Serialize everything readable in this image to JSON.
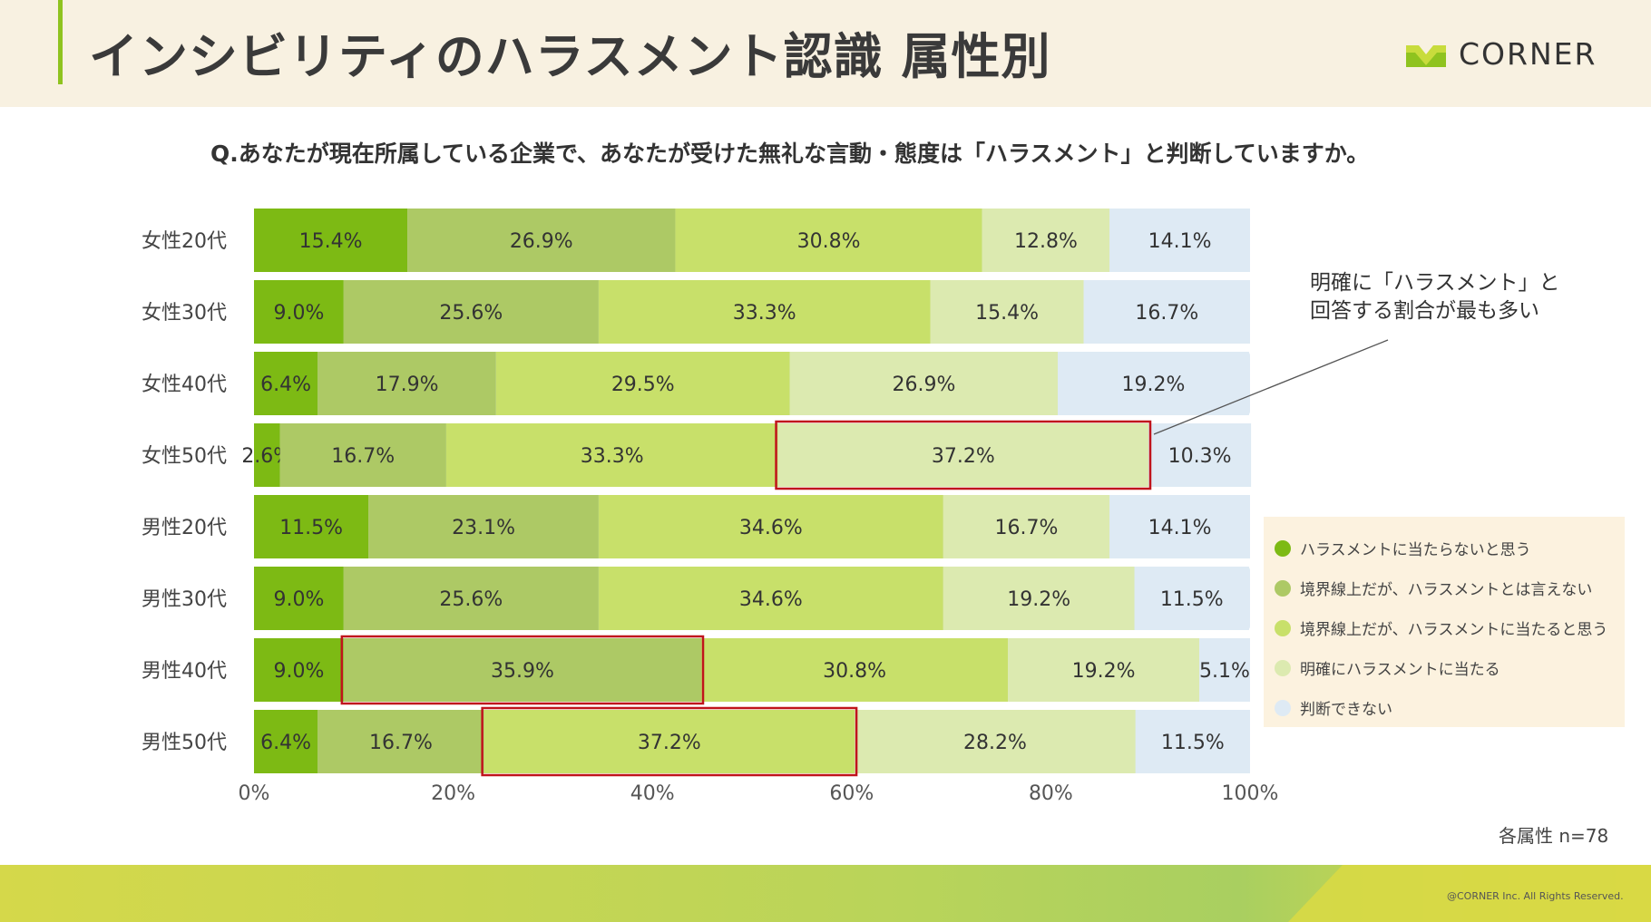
{
  "header": {
    "title": "インシビリティのハラスメント認識 属性別"
  },
  "logo": {
    "text": "CORNER"
  },
  "question": "Q.あなたが現在所属している企業で、あなたが受けた無礼な言動・態度は「ハラスメント」と判断していますか。",
  "annotation": {
    "line1": "明確に「ハラスメント」と",
    "line2": "回答する割合が最も多い"
  },
  "sample_note": "各属性 n=78",
  "copyright": "@CORNER Inc. All Rights Reserved.",
  "colors": {
    "s1": "#7dba14",
    "s2": "#adc965",
    "s3": "#c8e06a",
    "s4": "#dceab0",
    "s5": "#deeaf4",
    "highlight": "#c0141c",
    "header_bg": "#f8f1e1",
    "accent": "#8fc31f"
  },
  "chart_data": {
    "type": "bar",
    "orientation": "horizontal",
    "stacked": true,
    "categories": [
      "女性20代",
      "女性30代",
      "女性40代",
      "女性50代",
      "男性20代",
      "男性30代",
      "男性40代",
      "男性50代"
    ],
    "series": [
      {
        "name": "ハラスメントに当たらないと思う",
        "values": [
          15.4,
          9.0,
          6.4,
          2.6,
          11.5,
          9.0,
          9.0,
          6.4
        ]
      },
      {
        "name": "境界線上だが、ハラスメントとは言えない",
        "values": [
          26.9,
          25.6,
          17.9,
          16.7,
          23.1,
          25.6,
          35.9,
          16.7
        ]
      },
      {
        "name": "境界線上だが、ハラスメントに当たると思う",
        "values": [
          30.8,
          33.3,
          29.5,
          33.3,
          34.6,
          34.6,
          30.8,
          37.2
        ]
      },
      {
        "name": "明確にハラスメントに当たる",
        "values": [
          12.8,
          15.4,
          26.9,
          37.2,
          16.7,
          19.2,
          19.2,
          28.2
        ]
      },
      {
        "name": "判断できない",
        "values": [
          14.1,
          16.7,
          19.2,
          10.3,
          14.1,
          11.5,
          5.1,
          11.5
        ]
      }
    ],
    "x_ticks": [
      "0%",
      "20%",
      "40%",
      "60%",
      "80%",
      "100%"
    ],
    "xlim": [
      0,
      100
    ],
    "highlighted": [
      {
        "category": "女性50代",
        "series": "明確にハラスメントに当たる"
      },
      {
        "category": "男性40代",
        "series": "境界線上だが、ハラスメントとは言えない"
      },
      {
        "category": "男性50代",
        "series": "境界線上だが、ハラスメントに当たると思う"
      }
    ],
    "legend_position": "right"
  }
}
